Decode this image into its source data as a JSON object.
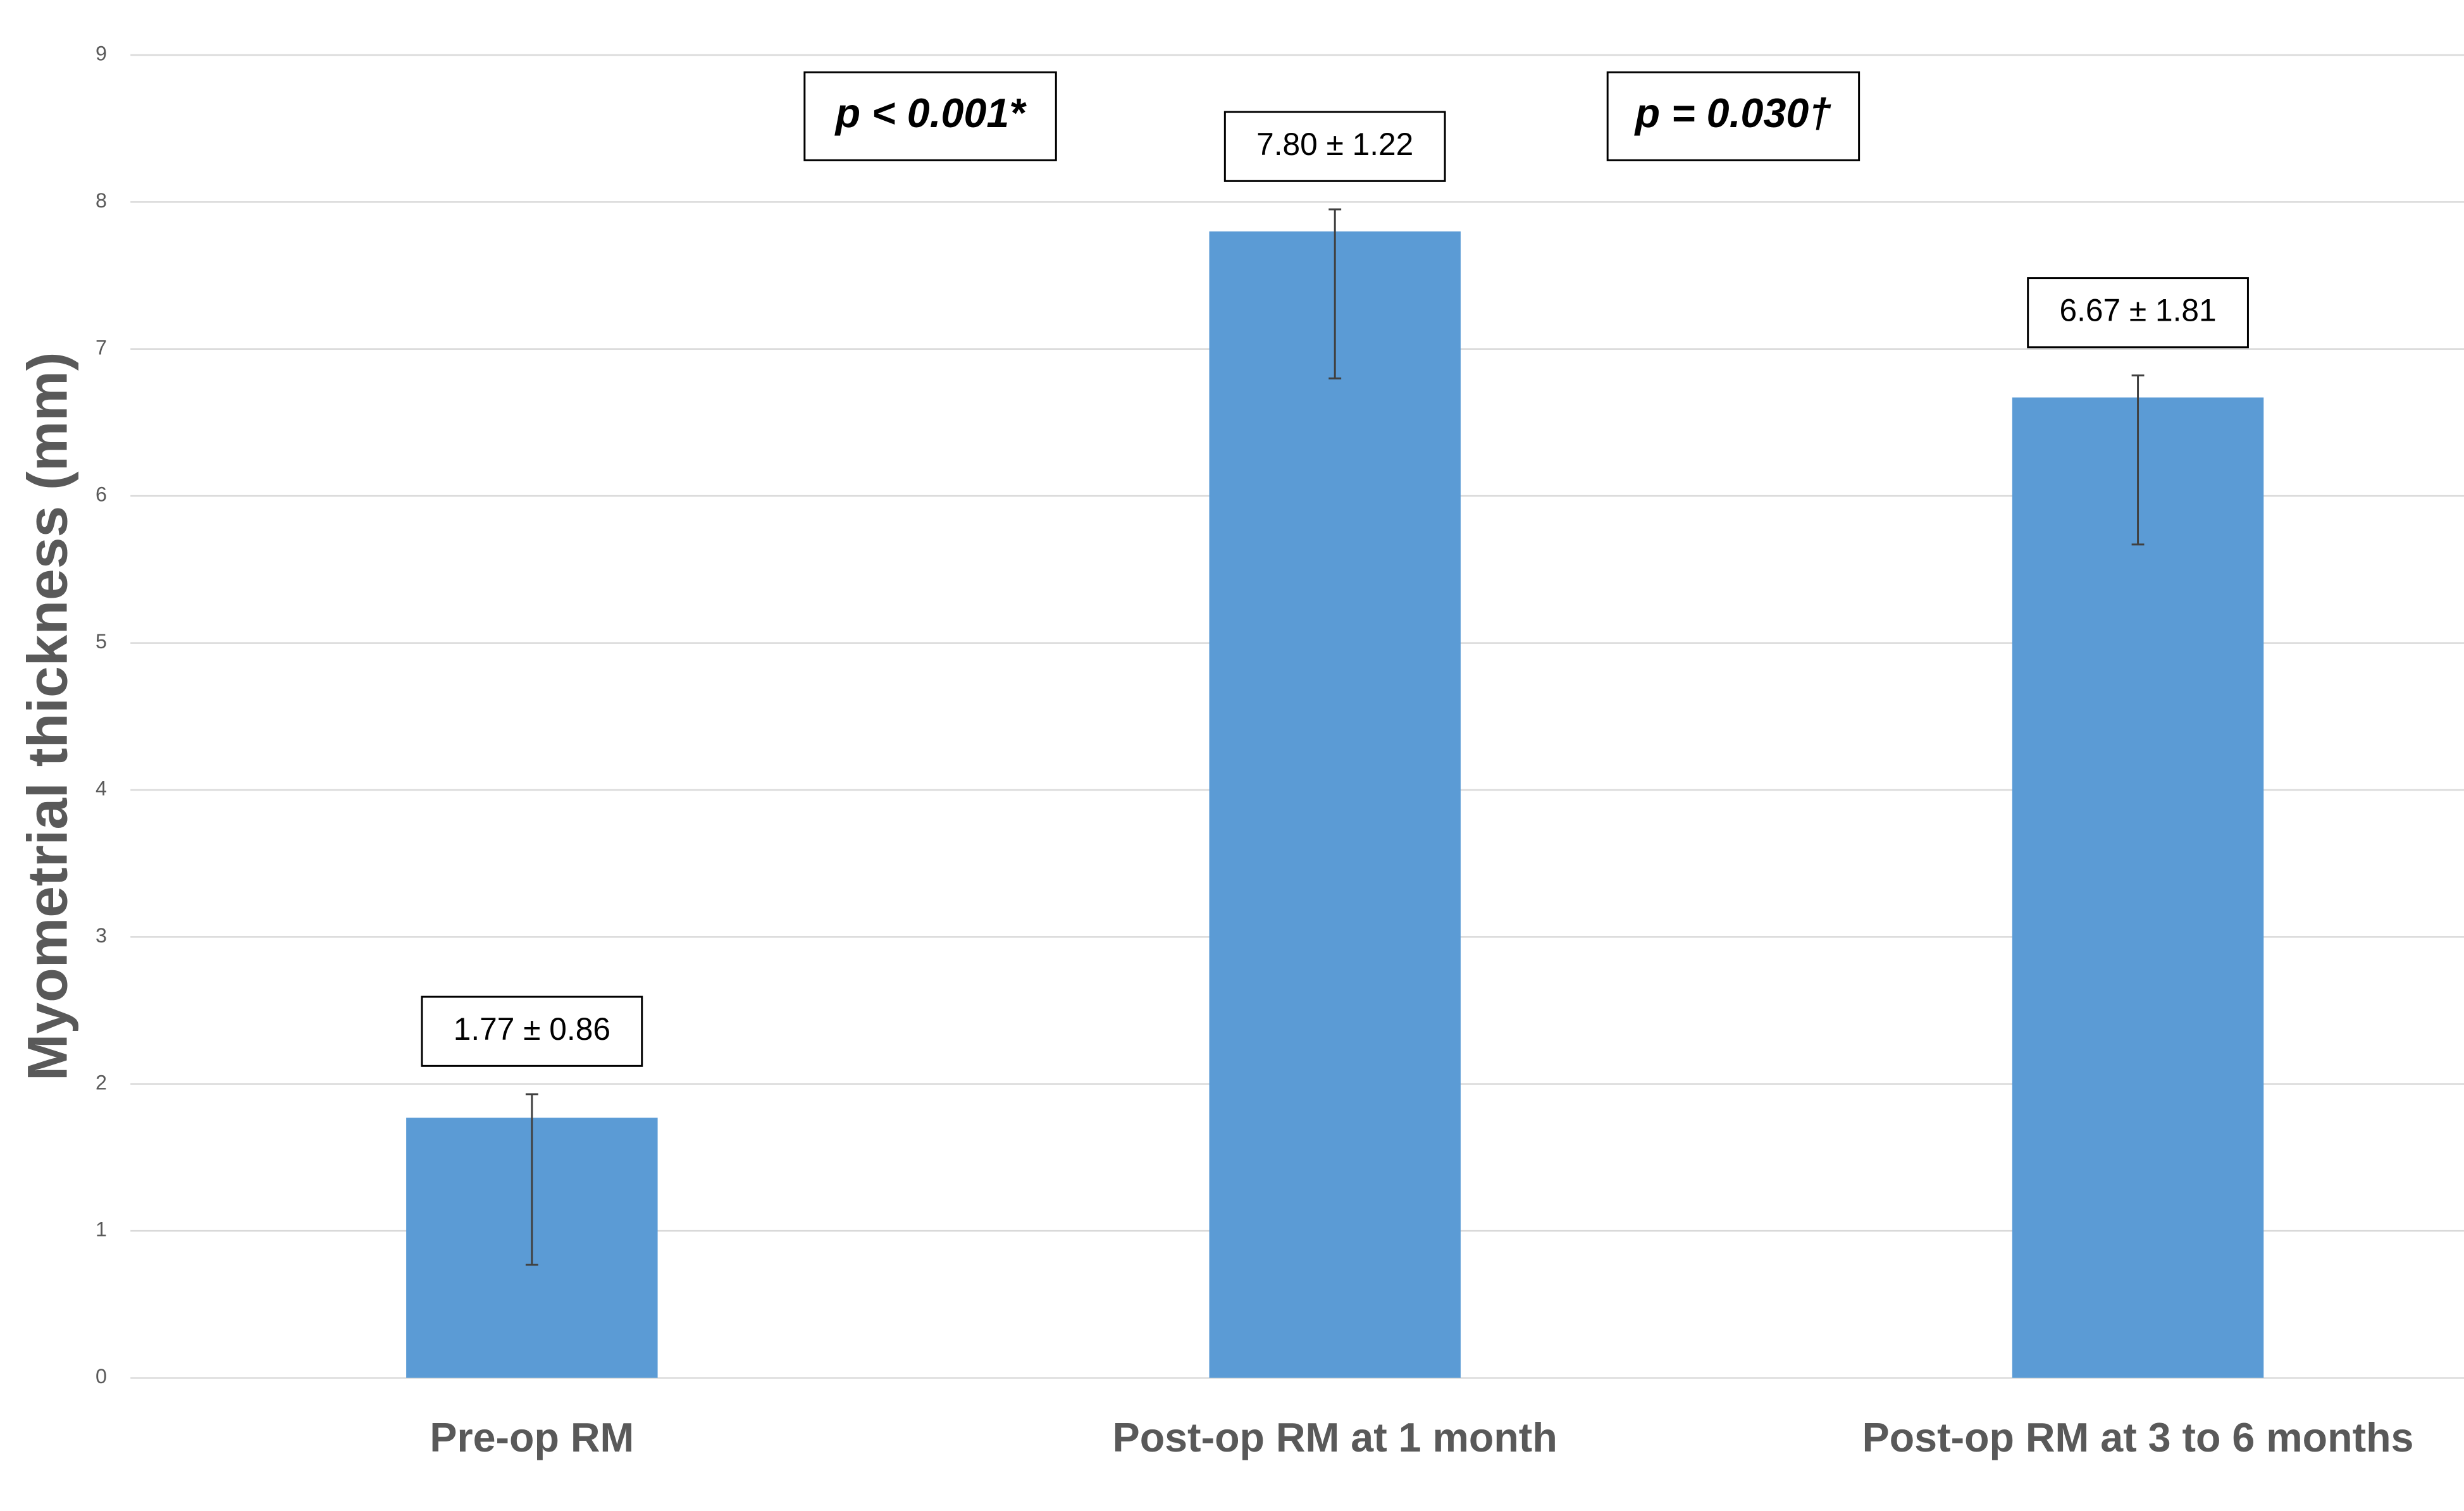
{
  "chart_data": {
    "type": "bar",
    "y_label": "Myometrial thickness (mm)",
    "categories": [
      "Pre-op RM",
      "Post-op RM at 1 month",
      "Post-op RM at 3 to 6 months"
    ],
    "values": [
      1.77,
      7.8,
      6.67
    ],
    "value_labels": [
      "1.77 ± 0.86",
      "7.80 ± 1.22",
      "6.67 ± 1.81"
    ],
    "error_minus": [
      1.0,
      1.0,
      1.0
    ],
    "error_plus": [
      0.16,
      0.15,
      0.15
    ],
    "color": "#5b9bd5",
    "ylim": [
      0,
      9
    ],
    "yticks": [
      0,
      1,
      2,
      3,
      4,
      5,
      6,
      7,
      8,
      9
    ],
    "grid": true,
    "annotations": [
      "p < 0.001*",
      "p = 0.030†"
    ]
  }
}
